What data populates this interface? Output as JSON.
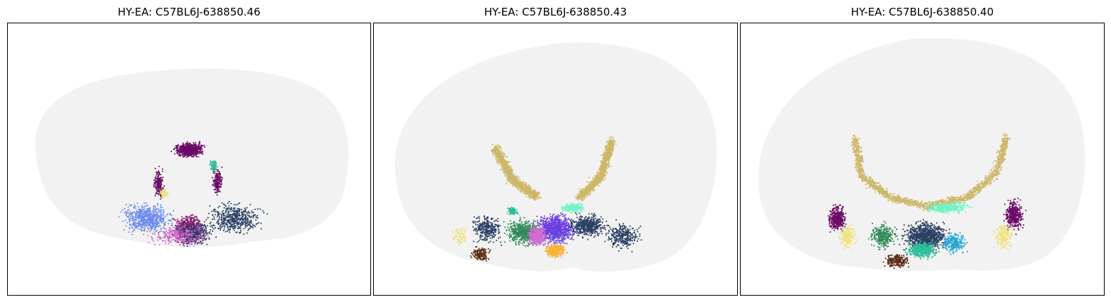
{
  "figure": {
    "panels": [
      {
        "title": "HY-EA: C57BL6J-638850.46"
      },
      {
        "title": "HY-EA: C57BL6J-638850.43"
      },
      {
        "title": "HY-EA: C57BL6J-638850.40"
      }
    ],
    "palette": {
      "background_tissue": "#f2f2f2",
      "purple": "#6b0a66",
      "tan": "#cdb768",
      "teal": "#2fbf9a",
      "aquamarine": "#6ff2c8",
      "violet": "#6a3fe0",
      "navy": "#2a3f63",
      "blue": "#6d8af0",
      "orange": "#f7b23b",
      "green": "#2e8b57",
      "pink": "#d36ad1",
      "magenta": "#a0157a",
      "yellow": "#f0e27a",
      "brown": "#5a2a10",
      "cyan": "#23a5d6"
    }
  }
}
